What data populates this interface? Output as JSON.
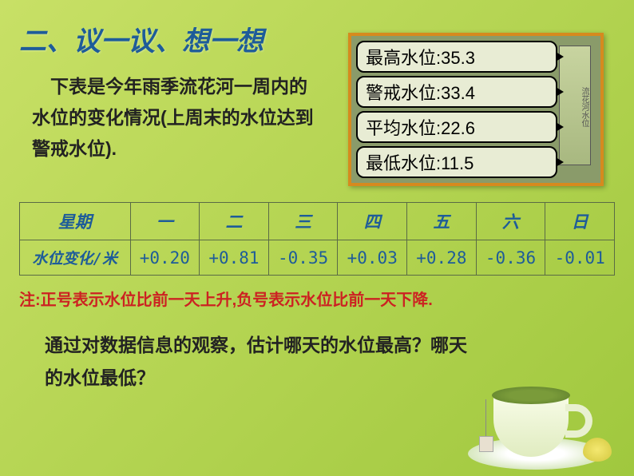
{
  "title": "二、议一议、想一想",
  "intro": {
    "line1": "　下表是今年雨季流花河一周内的",
    "line2": "水位的变化情况(上周末的水位达到",
    "line3": "警戒水位)."
  },
  "waterSign": {
    "boardLabel": "流花河水位",
    "levels": [
      {
        "label": "最高水位:",
        "value": "35.3"
      },
      {
        "label": "警戒水位:",
        "value": "33.4"
      },
      {
        "label": "平均水位:",
        "value": "22.6"
      },
      {
        "label": "最低水位:",
        "value": "11.5"
      }
    ]
  },
  "table": {
    "headerRow": [
      "星期",
      "一",
      "二",
      "三",
      "四",
      "五",
      "六",
      "日"
    ],
    "dataRowLabel": "水位变化/米",
    "dataRow": [
      "+0.20",
      "+0.81",
      "-0.35",
      "+0.03",
      "+0.28",
      "-0.36",
      "-0.01"
    ],
    "colors": {
      "border": "#5a6b45",
      "text": "#1e5c99"
    }
  },
  "note": "注:正号表示水位比前一天上升,负号表示水位比前一天下降.",
  "question": {
    "line1": "通过对数据信息的观察，估计哪天的水位最高？哪天",
    "line2": "的水位最低？"
  },
  "theme": {
    "bgGradient": [
      "#c8e066",
      "#b4d452",
      "#a0c83e"
    ],
    "titleColor": "#1e5c99",
    "bodyColor": "#222222",
    "noteColor": "#cc2222",
    "frameBorder": "#d68a1e"
  }
}
